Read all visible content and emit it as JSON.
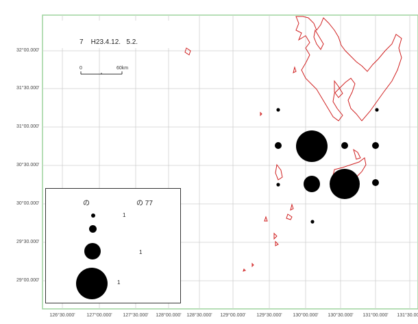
{
  "map": {
    "frame_color": "#9ed39e",
    "grid_color": "#cfcfcf",
    "coast_color": "#d02020",
    "lat_labels": [
      "32°00.000'",
      "31°30.000'",
      "31°00.000'",
      "30°30.000'",
      "30°00.000'",
      "29°30.000'",
      "29°00.000'"
    ],
    "lon_labels": [
      "126°30.000'",
      "127°00.000'",
      "127°30.000'",
      "128°00.000'",
      "128°30.000'",
      "129°00.000'",
      "129°30.000'",
      "130°00.000'",
      "130°30.000'",
      "131°00.000'",
      "131°30.000'"
    ]
  },
  "title": "7    H23.4.12.   5.2.",
  "scale_bar": {
    "start": "0",
    "end": "60km"
  },
  "legend": {
    "header_left": "の",
    "header_right": "の  77",
    "entries": [
      "1",
      "",
      "1",
      "1"
    ]
  },
  "icons": [
    "catch-circle-icon"
  ]
}
